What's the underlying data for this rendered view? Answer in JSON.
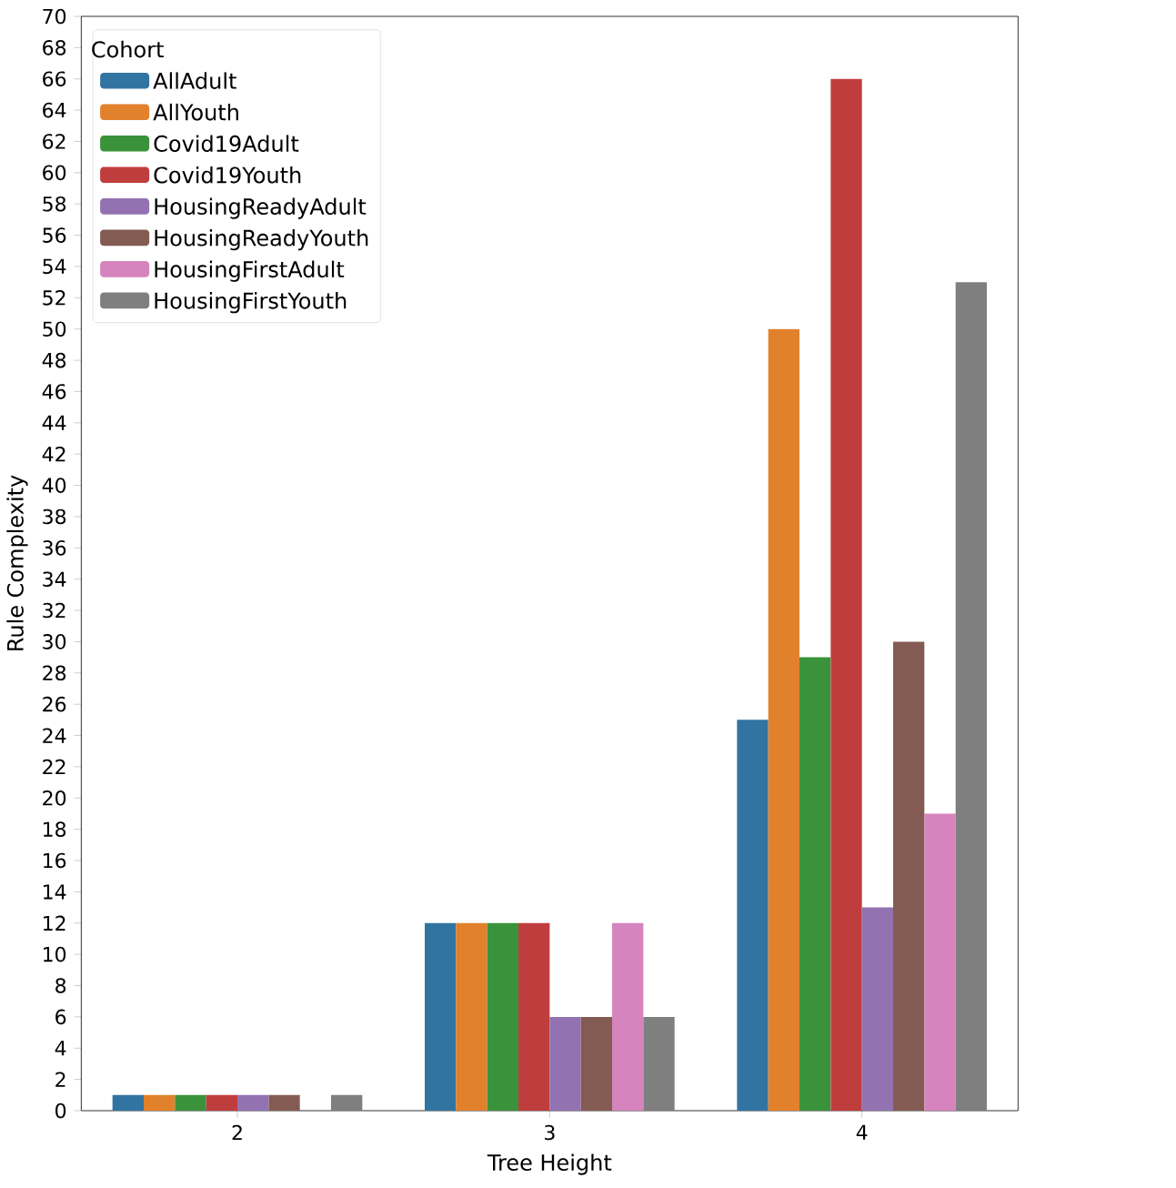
{
  "chart_data": {
    "type": "bar",
    "xlabel": "Tree Height",
    "ylabel": "Rule Complexity",
    "legend_title": "Cohort",
    "legend": "top left",
    "grid": false,
    "categories": [
      "2",
      "3",
      "4"
    ],
    "ylim": [
      0,
      70
    ],
    "yticks": [
      0,
      2,
      4,
      6,
      8,
      10,
      12,
      14,
      16,
      18,
      20,
      22,
      24,
      26,
      28,
      30,
      32,
      34,
      36,
      38,
      40,
      42,
      44,
      46,
      48,
      50,
      52,
      54,
      56,
      58,
      60,
      62,
      64,
      66,
      68,
      70
    ],
    "series": [
      {
        "name": "AllAdult",
        "color": "#3274a1",
        "values": [
          1,
          12,
          25
        ]
      },
      {
        "name": "AllYouth",
        "color": "#e1812c",
        "values": [
          1,
          12,
          50
        ]
      },
      {
        "name": "Covid19Adult",
        "color": "#3a923a",
        "values": [
          1,
          12,
          29
        ]
      },
      {
        "name": "Covid19Youth",
        "color": "#c03d3e",
        "values": [
          1,
          12,
          66
        ]
      },
      {
        "name": "HousingReadyAdult",
        "color": "#9372b2",
        "values": [
          1,
          6,
          13
        ]
      },
      {
        "name": "HousingReadyYouth",
        "color": "#845b53",
        "values": [
          1,
          6,
          30
        ]
      },
      {
        "name": "HousingFirstAdult",
        "color": "#d684bd",
        "values": [
          null,
          12,
          19
        ]
      },
      {
        "name": "HousingFirstYouth",
        "color": "#7f7f7f",
        "values": [
          1,
          6,
          53
        ]
      }
    ]
  }
}
